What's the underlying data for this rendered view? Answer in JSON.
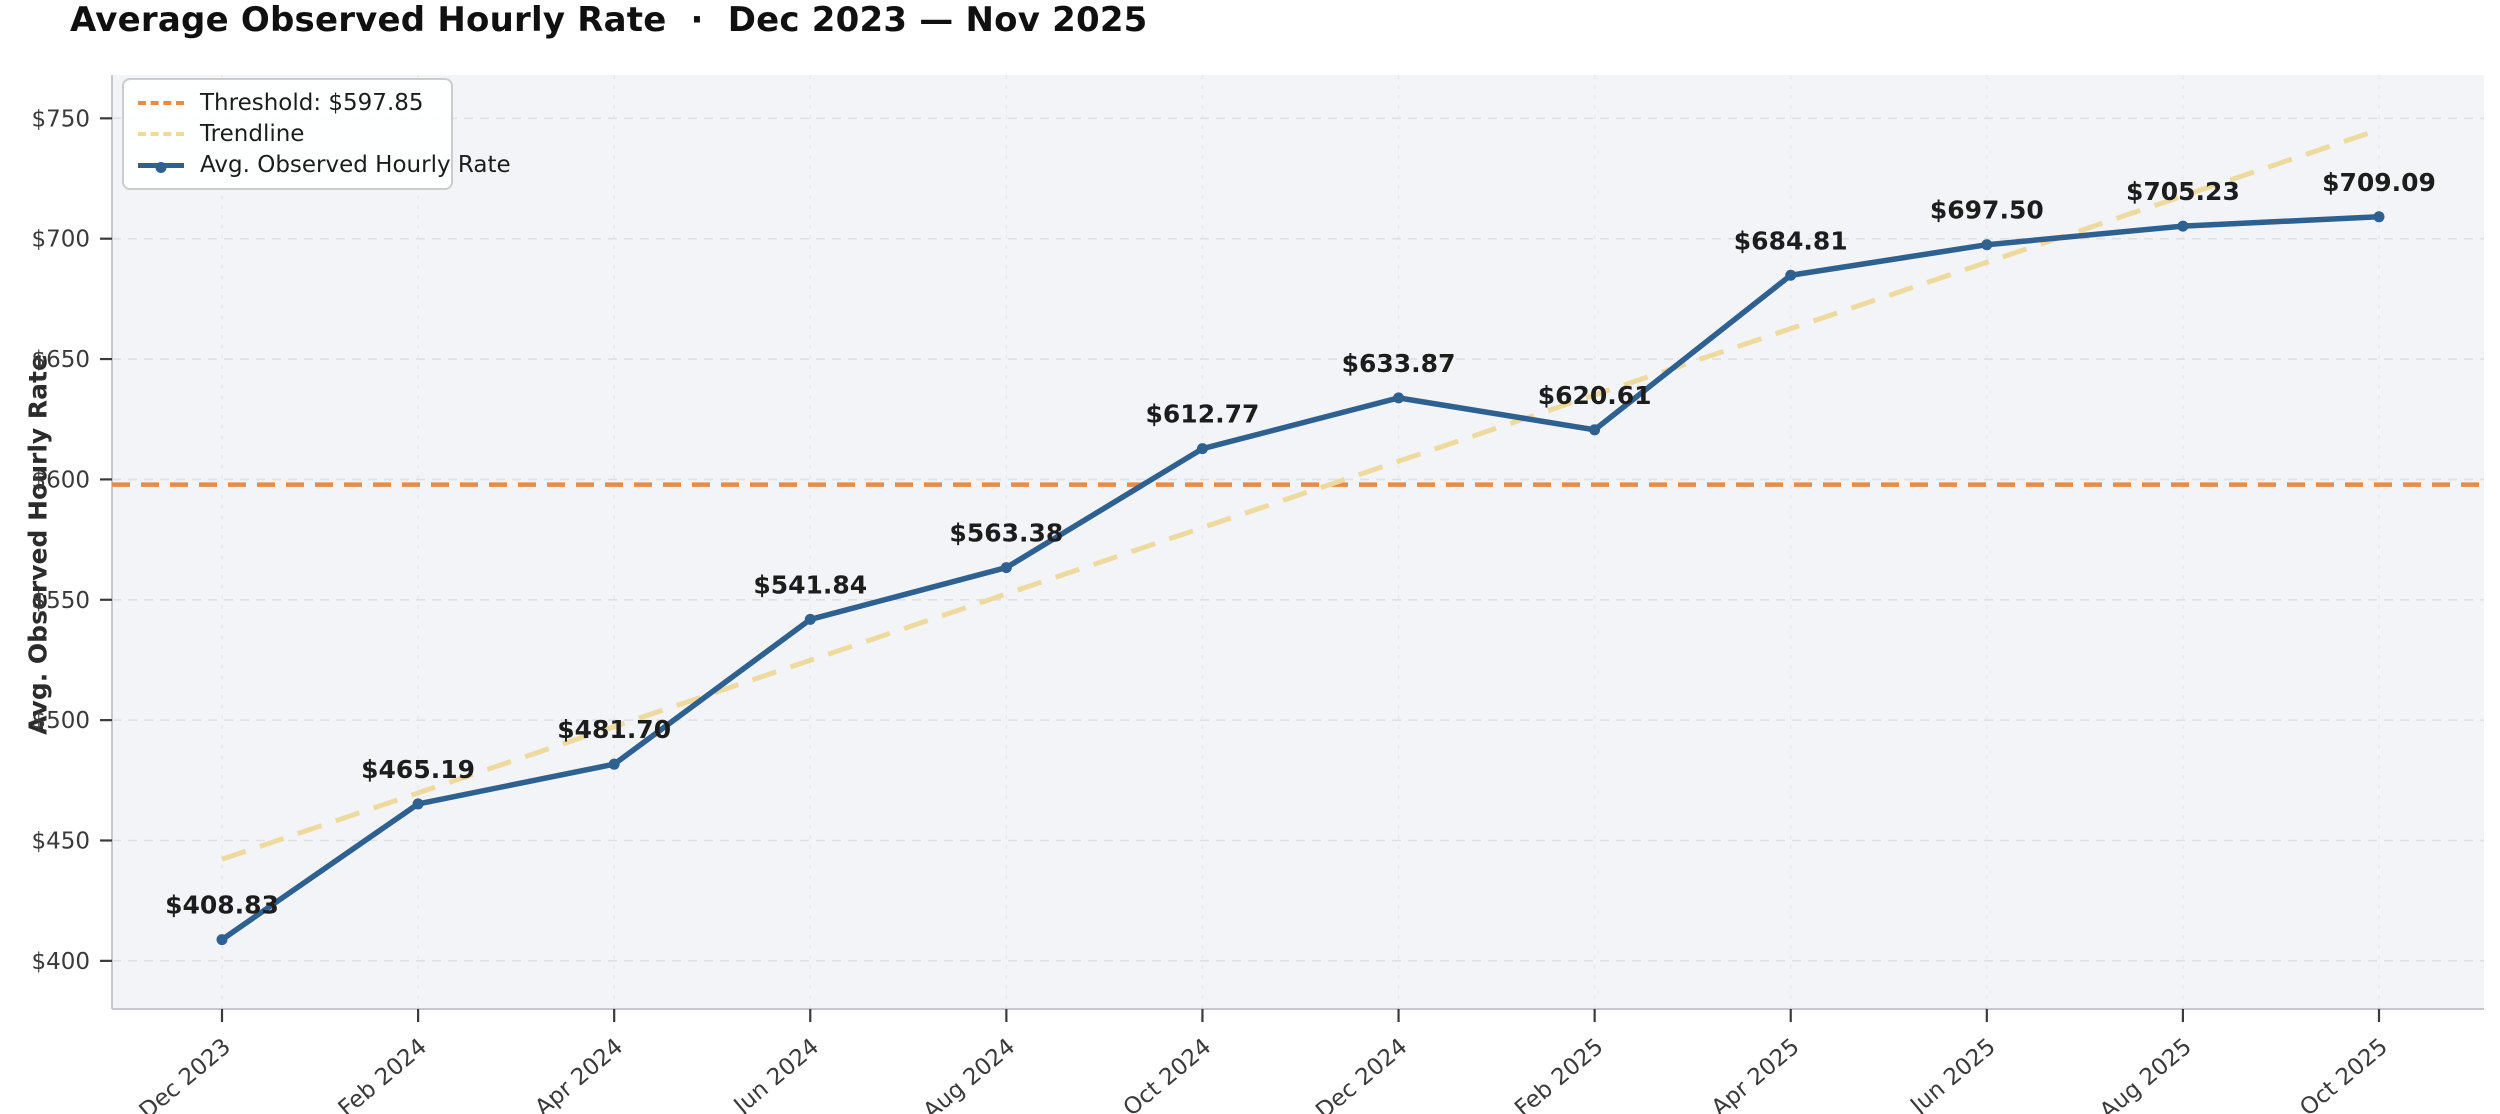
{
  "header": {
    "title": "Average Observed Hourly Rate  ·  Dec 2023 — Nov 2025"
  },
  "legend": {
    "entries": [
      {
        "id": "threshold",
        "label": "Threshold: $597.85"
      },
      {
        "id": "trendline",
        "label": "Trendline"
      },
      {
        "id": "series",
        "label": "Avg. Observed Hourly Rate"
      }
    ]
  },
  "chart_data": {
    "type": "line",
    "title": "Average Observed Hourly Rate  ·  Dec 2023 — Nov 2025",
    "xlabel": "",
    "ylabel": "Avg. Observed Hourly Rate",
    "ylim": [
      380,
      768
    ],
    "yticks": [
      400,
      450,
      500,
      550,
      600,
      650,
      700,
      750
    ],
    "ytick_labels": [
      "$400",
      "$450",
      "$500",
      "$550",
      "$600",
      "$650",
      "$700",
      "$750"
    ],
    "categories": [
      "Dec 2023",
      "Feb 2024",
      "Apr 2024",
      "Jun 2024",
      "Aug 2024",
      "Oct 2024",
      "Dec 2024",
      "Feb 2025",
      "Apr 2025",
      "Jun 2025",
      "Aug 2025",
      "Oct 2025"
    ],
    "grid": true,
    "legend_position": "upper-left",
    "series": [
      {
        "name": "Avg. Observed Hourly Rate",
        "values": [
          408.83,
          465.19,
          481.7,
          541.84,
          563.38,
          612.77,
          633.87,
          620.61,
          684.81,
          697.5,
          705.23,
          709.09
        ],
        "point_labels": [
          "$408.83",
          "$465.19",
          "$481.70",
          "$541.84",
          "$563.38",
          "$612.77",
          "$633.87",
          "$620.61",
          "$684.81",
          "$697.50",
          "$705.23",
          "$709.09"
        ]
      }
    ],
    "threshold": {
      "name": "Threshold: $597.85",
      "value": 597.85
    },
    "trendline": {
      "name": "Trendline",
      "start_value": 442.2,
      "end_value": 745.3
    }
  },
  "colors": {
    "series": "#2e6190",
    "threshold": "#e98b43",
    "trendline": "#eeda9f",
    "plot_bg": "#f3f4f7",
    "grid_h": "#dfe0e4",
    "grid_v": "#e9eaee",
    "spine": "#c6c8cc",
    "tick": "#3a3a3a",
    "tick_text": "#3a3a3a",
    "point_label_text": "#1d1d1d"
  }
}
